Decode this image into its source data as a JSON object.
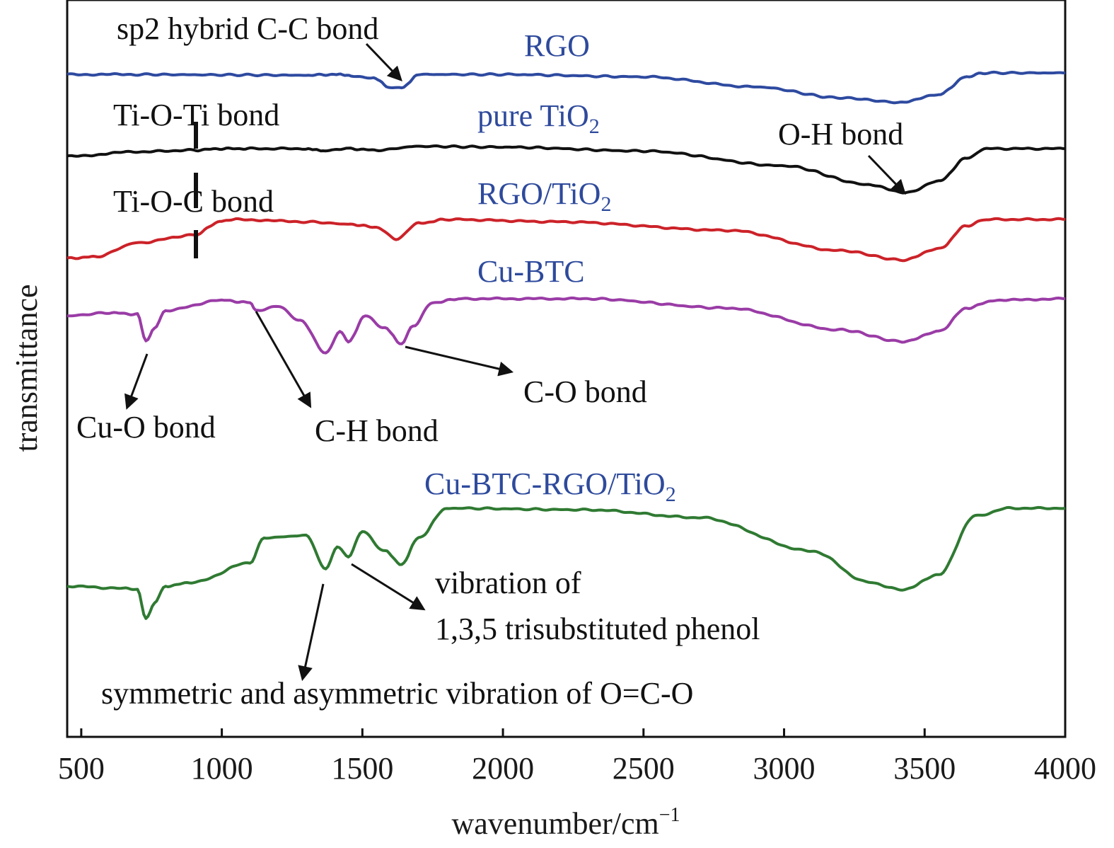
{
  "chart_data": {
    "type": "line",
    "xlabel": "wavenumber/cm",
    "xlabel_sup": "−1",
    "ylabel": "transmittance",
    "xlim": [
      450,
      4000
    ],
    "x_ticks": [
      500,
      1000,
      1500,
      2000,
      2500,
      3000,
      3500,
      4000
    ],
    "grid": false,
    "series_label_color": "#2e4a9c",
    "series": [
      {
        "name": "RGO",
        "color": "#2e4aa0",
        "offset": 0,
        "points": [
          [
            450,
            0.02
          ],
          [
            700,
            0.02
          ],
          [
            1000,
            0.025
          ],
          [
            1300,
            0.03
          ],
          [
            1400,
            0.02
          ],
          [
            1460,
            0.035
          ],
          [
            1540,
            0.07
          ],
          [
            1600,
            0.19
          ],
          [
            1640,
            0.19
          ],
          [
            1700,
            0.02
          ],
          [
            2000,
            0.02
          ],
          [
            2500,
            0.05
          ],
          [
            2900,
            0.18
          ],
          [
            3200,
            0.32
          ],
          [
            3420,
            0.38
          ],
          [
            3550,
            0.28
          ],
          [
            3650,
            0.05
          ],
          [
            3700,
            0.0
          ],
          [
            4000,
            0.0
          ]
        ]
      },
      {
        "name": "pure TiO",
        "name_sub": "2",
        "color": "#111111",
        "offset": 1,
        "points": [
          [
            450,
            0.1
          ],
          [
            700,
            0.04
          ],
          [
            900,
            0.02
          ],
          [
            1000,
            0.0
          ],
          [
            1100,
            0.0
          ],
          [
            1300,
            0.0
          ],
          [
            1360,
            0.03
          ],
          [
            1400,
            0.02
          ],
          [
            1450,
            0.0
          ],
          [
            1550,
            0.02
          ],
          [
            1700,
            -0.03
          ],
          [
            2000,
            -0.02
          ],
          [
            2500,
            0.03
          ],
          [
            3000,
            0.22
          ],
          [
            3300,
            0.46
          ],
          [
            3430,
            0.57
          ],
          [
            3550,
            0.42
          ],
          [
            3650,
            0.12
          ],
          [
            3720,
            0.0
          ],
          [
            4000,
            0.0
          ]
        ]
      },
      {
        "name": "RGO/TiO",
        "name_sub": "2",
        "color": "#cc2229",
        "offset": 2,
        "points": [
          [
            450,
            0.5
          ],
          [
            550,
            0.48
          ],
          [
            700,
            0.3
          ],
          [
            900,
            0.2
          ],
          [
            1000,
            0.02
          ],
          [
            1050,
            0.0
          ],
          [
            1300,
            0.03
          ],
          [
            1450,
            0.06
          ],
          [
            1550,
            0.1
          ],
          [
            1620,
            0.25
          ],
          [
            1700,
            0.05
          ],
          [
            1800,
            0.0
          ],
          [
            2200,
            0.03
          ],
          [
            2800,
            0.14
          ],
          [
            3200,
            0.4
          ],
          [
            3420,
            0.52
          ],
          [
            3550,
            0.38
          ],
          [
            3650,
            0.08
          ],
          [
            3720,
            0.0
          ],
          [
            4000,
            0.0
          ]
        ]
      },
      {
        "name": "Cu-BTC",
        "color": "#9a3ca6",
        "offset": 3,
        "points": [
          [
            450,
            0.22
          ],
          [
            600,
            0.18
          ],
          [
            700,
            0.2
          ],
          [
            730,
            0.55
          ],
          [
            760,
            0.38
          ],
          [
            800,
            0.15
          ],
          [
            1000,
            0.02
          ],
          [
            1100,
            0.05
          ],
          [
            1120,
            0.15
          ],
          [
            1200,
            0.1
          ],
          [
            1280,
            0.28
          ],
          [
            1370,
            0.7
          ],
          [
            1420,
            0.42
          ],
          [
            1450,
            0.55
          ],
          [
            1510,
            0.22
          ],
          [
            1580,
            0.38
          ],
          [
            1640,
            0.58
          ],
          [
            1680,
            0.35
          ],
          [
            1750,
            0.05
          ],
          [
            1850,
            0.0
          ],
          [
            2300,
            0.0
          ],
          [
            2800,
            0.12
          ],
          [
            3200,
            0.4
          ],
          [
            3420,
            0.55
          ],
          [
            3550,
            0.42
          ],
          [
            3650,
            0.12
          ],
          [
            3750,
            0.02
          ],
          [
            4000,
            0.0
          ]
        ]
      },
      {
        "name": "Cu-BTC-RGO/TiO",
        "name_sub": "2",
        "color": "#2f7a32",
        "offset": 4,
        "points": [
          [
            450,
            1.0
          ],
          [
            650,
            1.03
          ],
          [
            700,
            1.05
          ],
          [
            730,
            1.42
          ],
          [
            760,
            1.22
          ],
          [
            800,
            1.0
          ],
          [
            900,
            0.95
          ],
          [
            1100,
            0.7
          ],
          [
            1150,
            0.38
          ],
          [
            1300,
            0.35
          ],
          [
            1370,
            0.78
          ],
          [
            1410,
            0.5
          ],
          [
            1450,
            0.62
          ],
          [
            1500,
            0.3
          ],
          [
            1580,
            0.55
          ],
          [
            1640,
            0.72
          ],
          [
            1700,
            0.38
          ],
          [
            1800,
            0.0
          ],
          [
            2300,
            0.02
          ],
          [
            2700,
            0.12
          ],
          [
            3100,
            0.55
          ],
          [
            3300,
            0.95
          ],
          [
            3420,
            1.05
          ],
          [
            3550,
            0.85
          ],
          [
            3680,
            0.1
          ],
          [
            3800,
            0.0
          ],
          [
            4000,
            0.0
          ]
        ]
      }
    ],
    "annotations": [
      {
        "text": "sp2 hybrid C-C bond"
      },
      {
        "text": "Ti-O-Ti bond"
      },
      {
        "text": "O-H bond"
      },
      {
        "text": "Ti-O-C bond"
      },
      {
        "text": "Cu-O bond"
      },
      {
        "text": "C-H bond"
      },
      {
        "text": "C-O bond"
      },
      {
        "text": "vibration of"
      },
      {
        "text": "1,3,5 trisubstituted phenol"
      },
      {
        "text": "symmetric and asymmetric vibration of O=C-O"
      }
    ]
  }
}
